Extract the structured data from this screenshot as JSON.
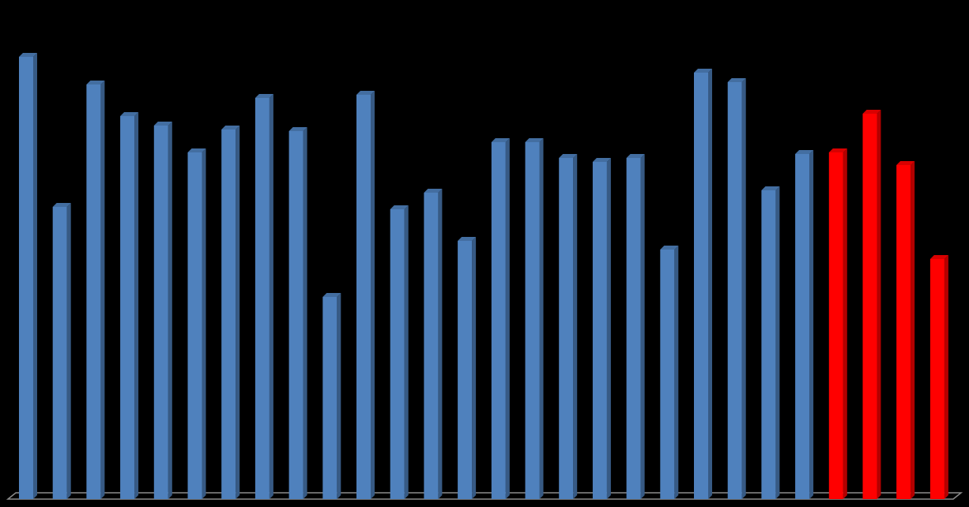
{
  "chart_data": {
    "type": "bar3d",
    "categories": [
      null,
      null,
      null,
      null,
      null,
      null,
      null,
      null,
      null,
      null,
      null,
      null,
      null,
      null,
      null,
      null,
      null,
      null,
      null,
      null,
      null,
      null,
      null,
      null,
      null,
      null,
      null,
      null
    ],
    "values": [
      560,
      370,
      525,
      485,
      473,
      439,
      468,
      508,
      466,
      256,
      512,
      367,
      388,
      327,
      452,
      452,
      432,
      427,
      432,
      316,
      540,
      528,
      391,
      437,
      439,
      488,
      423,
      304
    ],
    "colors": [
      "#4f81bd",
      "#4f81bd",
      "#4f81bd",
      "#4f81bd",
      "#4f81bd",
      "#4f81bd",
      "#4f81bd",
      "#4f81bd",
      "#4f81bd",
      "#4f81bd",
      "#4f81bd",
      "#4f81bd",
      "#4f81bd",
      "#4f81bd",
      "#4f81bd",
      "#4f81bd",
      "#4f81bd",
      "#4f81bd",
      "#4f81bd",
      "#4f81bd",
      "#4f81bd",
      "#4f81bd",
      "#4f81bd",
      "#4f81bd",
      "#ff0000",
      "#ff0000",
      "#ff0000",
      "#ff0000"
    ],
    "ylim": [
      0,
      600
    ]
  }
}
